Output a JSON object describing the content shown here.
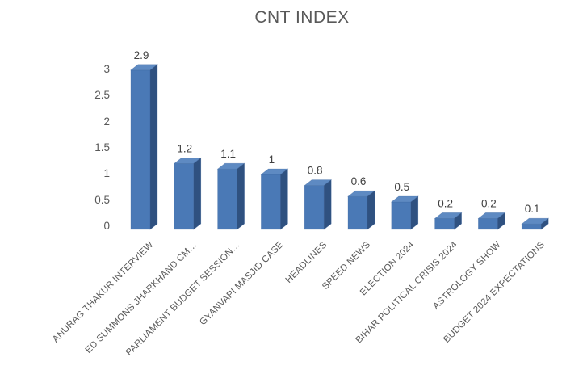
{
  "chart_data": {
    "type": "bar",
    "style": "3d-column",
    "title": "CNT INDEX",
    "categories": [
      "ANURAG THAKUR INTERVIEW",
      "ED SUMMONS JHARKHAND CM…",
      "PARLIAMENT BUDGET SESSION…",
      "GYANVAPI MASJID CASE",
      "HEADLINES",
      "SPEED NEWS",
      "ELECTION 2024",
      "BIHAR POLITICAL CRISIS 2024",
      "ASTROLOGY SHOW",
      "BUDGET 2024 EXPECTATIONS"
    ],
    "values": [
      2.9,
      1.2,
      1.1,
      1,
      0.8,
      0.6,
      0.5,
      0.2,
      0.2,
      0.1
    ],
    "y_ticks": [
      "3",
      "2.5",
      "2",
      "1.5",
      "1",
      "0.5",
      "0"
    ],
    "ylim": [
      0,
      3
    ],
    "xlabel": "",
    "ylabel": "",
    "grid": false,
    "legend": false,
    "data_labels_shown": true,
    "colors": {
      "bar_front": "#4A79B6",
      "bar_top": "#5E8AC2",
      "bar_side": "#2F5180",
      "bar_edge": "#3A619B",
      "title_text": "#595959",
      "axis_text": "#595959",
      "value_text": "#404040",
      "background": "#FFFFFF"
    }
  }
}
